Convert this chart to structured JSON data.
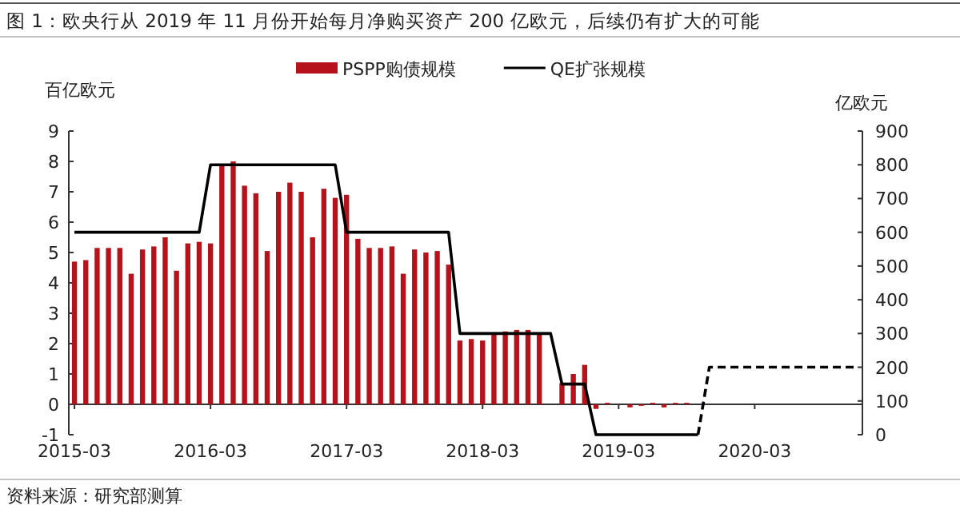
{
  "chart_data": {
    "type": "bar",
    "title": "图 1：欧央行从 2019 年 11 月份开始每月净购买资产 200 亿欧元，后续仍有扩大的可能",
    "ylabel": "百亿欧元",
    "y2label": "亿欧元",
    "annotations": [
      "资料来源：研究部测算"
    ],
    "categories": [
      "2015-03",
      null,
      null,
      null,
      null,
      null,
      null,
      null,
      null,
      null,
      null,
      null,
      "2016-03",
      null,
      null,
      null,
      null,
      null,
      null,
      null,
      null,
      null,
      null,
      null,
      "2017-03",
      null,
      null,
      null,
      null,
      null,
      null,
      null,
      null,
      null,
      null,
      null,
      "2018-03",
      null,
      null,
      null,
      null,
      null,
      null,
      null,
      null,
      null,
      null,
      null,
      "2019-03",
      null,
      null,
      null,
      null,
      null,
      null,
      null,
      null,
      null,
      null,
      null,
      "2020-03",
      null,
      null,
      null,
      null,
      null,
      null,
      null,
      null,
      null
    ],
    "series": [
      {
        "name": "PSPP购债规模",
        "color": "#b5121b",
        "values": [
          4.7,
          4.75,
          5.15,
          5.15,
          5.15,
          4.3,
          5.1,
          5.2,
          5.5,
          4.4,
          5.3,
          5.35,
          5.3,
          7.9,
          8.0,
          7.2,
          6.95,
          5.05,
          7.0,
          7.3,
          7.0,
          5.5,
          7.1,
          6.8,
          6.9,
          5.45,
          5.15,
          5.15,
          5.2,
          4.3,
          5.1,
          5.0,
          5.05,
          4.6,
          2.1,
          2.15,
          2.1,
          2.3,
          2.4,
          2.45,
          2.45,
          2.3,
          null,
          0.7,
          1.0,
          1.3,
          -0.15,
          0.05,
          null,
          -0.1,
          -0.05,
          0.05,
          -0.1,
          0.05,
          0.05,
          null,
          null,
          null,
          null,
          null,
          null,
          null,
          null,
          null,
          null,
          null,
          null,
          null,
          null,
          null
        ]
      },
      {
        "name": "QE扩张规模",
        "type": "line",
        "axis": "y2",
        "line_style": "solid",
        "color": "#000000",
        "values": [
          600,
          600,
          600,
          600,
          600,
          600,
          600,
          600,
          600,
          600,
          600,
          600,
          800,
          800,
          800,
          800,
          800,
          800,
          800,
          800,
          800,
          800,
          800,
          800,
          600,
          600,
          600,
          600,
          600,
          600,
          600,
          600,
          600,
          600,
          300,
          300,
          300,
          300,
          300,
          300,
          300,
          300,
          300,
          150,
          150,
          150,
          0,
          0,
          0,
          0,
          0,
          0,
          0,
          0,
          0,
          0,
          null,
          null,
          null,
          null,
          null,
          null,
          null,
          null,
          null,
          null,
          null,
          null,
          null,
          null
        ]
      },
      {
        "type": "line",
        "axis": "y2",
        "line_style": "dashed",
        "color": "#000000",
        "values": [
          null,
          null,
          null,
          null,
          null,
          null,
          null,
          null,
          null,
          null,
          null,
          null,
          null,
          null,
          null,
          null,
          null,
          null,
          null,
          null,
          null,
          null,
          null,
          null,
          null,
          null,
          null,
          null,
          null,
          null,
          null,
          null,
          null,
          null,
          null,
          null,
          null,
          null,
          null,
          null,
          null,
          null,
          null,
          null,
          null,
          null,
          null,
          null,
          null,
          null,
          null,
          null,
          null,
          null,
          null,
          0,
          200,
          200,
          200,
          200,
          200,
          200,
          200,
          200,
          200,
          200,
          200,
          200,
          200,
          200
        ]
      }
    ],
    "ylim": [
      -1,
      9
    ],
    "yticks": [
      -1,
      0,
      1,
      2,
      3,
      4,
      5,
      6,
      7,
      8,
      9
    ],
    "y2lim": [
      0,
      900
    ],
    "y2ticks": [
      0,
      100,
      200,
      300,
      400,
      500,
      600,
      700,
      800,
      900
    ],
    "legend": "top"
  }
}
